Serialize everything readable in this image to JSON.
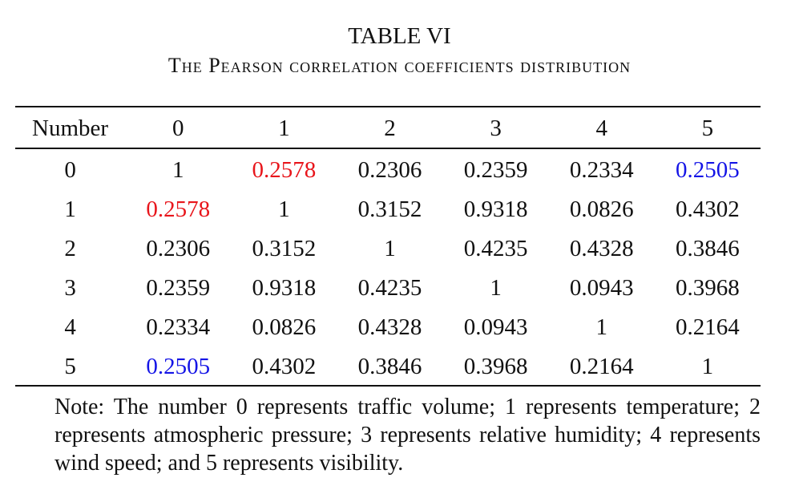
{
  "caption": {
    "title": "TABLE VI",
    "subtitle": "The Pearson correlation coefficients distribution"
  },
  "colors": {
    "text": "#111111",
    "highlight_red": "#e8151b",
    "highlight_blue": "#1414e6"
  },
  "table": {
    "header": [
      "Number",
      "0",
      "1",
      "2",
      "3",
      "4",
      "5"
    ],
    "rows": [
      {
        "label": "0",
        "cells": [
          {
            "v": "1"
          },
          {
            "v": "0.2578",
            "color": "red"
          },
          {
            "v": "0.2306"
          },
          {
            "v": "0.2359"
          },
          {
            "v": "0.2334"
          },
          {
            "v": "0.2505",
            "color": "blue"
          }
        ]
      },
      {
        "label": "1",
        "cells": [
          {
            "v": "0.2578",
            "color": "red"
          },
          {
            "v": "1"
          },
          {
            "v": "0.3152"
          },
          {
            "v": "0.9318"
          },
          {
            "v": "0.0826"
          },
          {
            "v": "0.4302"
          }
        ]
      },
      {
        "label": "2",
        "cells": [
          {
            "v": "0.2306"
          },
          {
            "v": "0.3152"
          },
          {
            "v": "1"
          },
          {
            "v": "0.4235"
          },
          {
            "v": "0.4328"
          },
          {
            "v": "0.3846"
          }
        ]
      },
      {
        "label": "3",
        "cells": [
          {
            "v": "0.2359"
          },
          {
            "v": "0.9318"
          },
          {
            "v": "0.4235"
          },
          {
            "v": "1"
          },
          {
            "v": "0.0943"
          },
          {
            "v": "0.3968"
          }
        ]
      },
      {
        "label": "4",
        "cells": [
          {
            "v": "0.2334"
          },
          {
            "v": "0.0826"
          },
          {
            "v": "0.4328"
          },
          {
            "v": "0.0943"
          },
          {
            "v": "1"
          },
          {
            "v": "0.2164"
          }
        ]
      },
      {
        "label": "5",
        "cells": [
          {
            "v": "0.2505",
            "color": "blue"
          },
          {
            "v": "0.4302"
          },
          {
            "v": "0.3846"
          },
          {
            "v": "0.3968"
          },
          {
            "v": "0.2164"
          },
          {
            "v": "1"
          }
        ]
      }
    ]
  },
  "note": "Note: The number 0 represents traffic volume; 1 represents temperature; 2 represents atmospheric pressure; 3 represents relative humidity; 4 represents wind speed; and 5 represents visibility."
}
